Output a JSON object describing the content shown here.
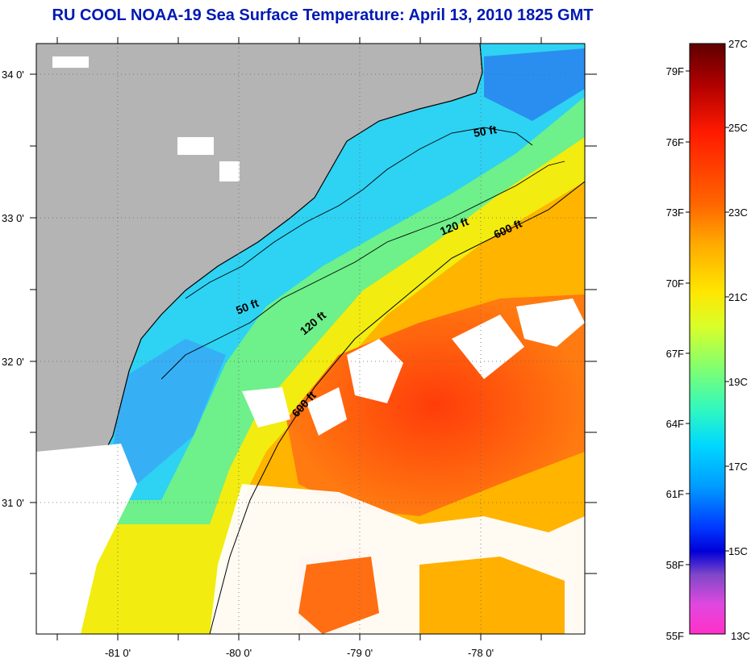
{
  "title": "RU COOL  NOAA-19  Sea Surface Temperature:  April 13, 2010 1825 GMT",
  "map": {
    "lon_ticks": [
      "-81 0'",
      "-80 0'",
      "-79 0'",
      "-78 0'"
    ],
    "lat_ticks": [
      "34 0'",
      "33 0'",
      "32 0'",
      "31 0'"
    ],
    "lon_range": [
      -81.7,
      -77.1
    ],
    "lat_range": [
      30.2,
      34.2
    ],
    "grid": "dotted",
    "contour_labels": [
      "50 ft",
      "50 ft",
      "120 ft",
      "120 ft",
      "600 ft",
      "600 ft"
    ],
    "colors": {
      "land": "#b4b4b4",
      "clouds": "#ffffff",
      "cool_water": "#2ed2f2",
      "warm_water": "#ff4a10"
    }
  },
  "colorbar": {
    "celsius_labels": [
      "27C",
      "25C",
      "23C",
      "21C",
      "19C",
      "17C",
      "15C",
      "13C"
    ],
    "fahrenheit_labels": [
      "79F",
      "76F",
      "73F",
      "70F",
      "67F",
      "64F",
      "61F",
      "58F",
      "55F"
    ],
    "range_c": [
      13,
      27
    ],
    "gradient": [
      "#5e0000",
      "#c00000",
      "#ff2200",
      "#ff6a00",
      "#ffb000",
      "#ffe400",
      "#e0ff20",
      "#90ff50",
      "#30ffb0",
      "#00e8ff",
      "#00a8ff",
      "#0048ff",
      "#0000e0",
      "#7a40d0",
      "#e040e0",
      "#ff30c8"
    ]
  }
}
